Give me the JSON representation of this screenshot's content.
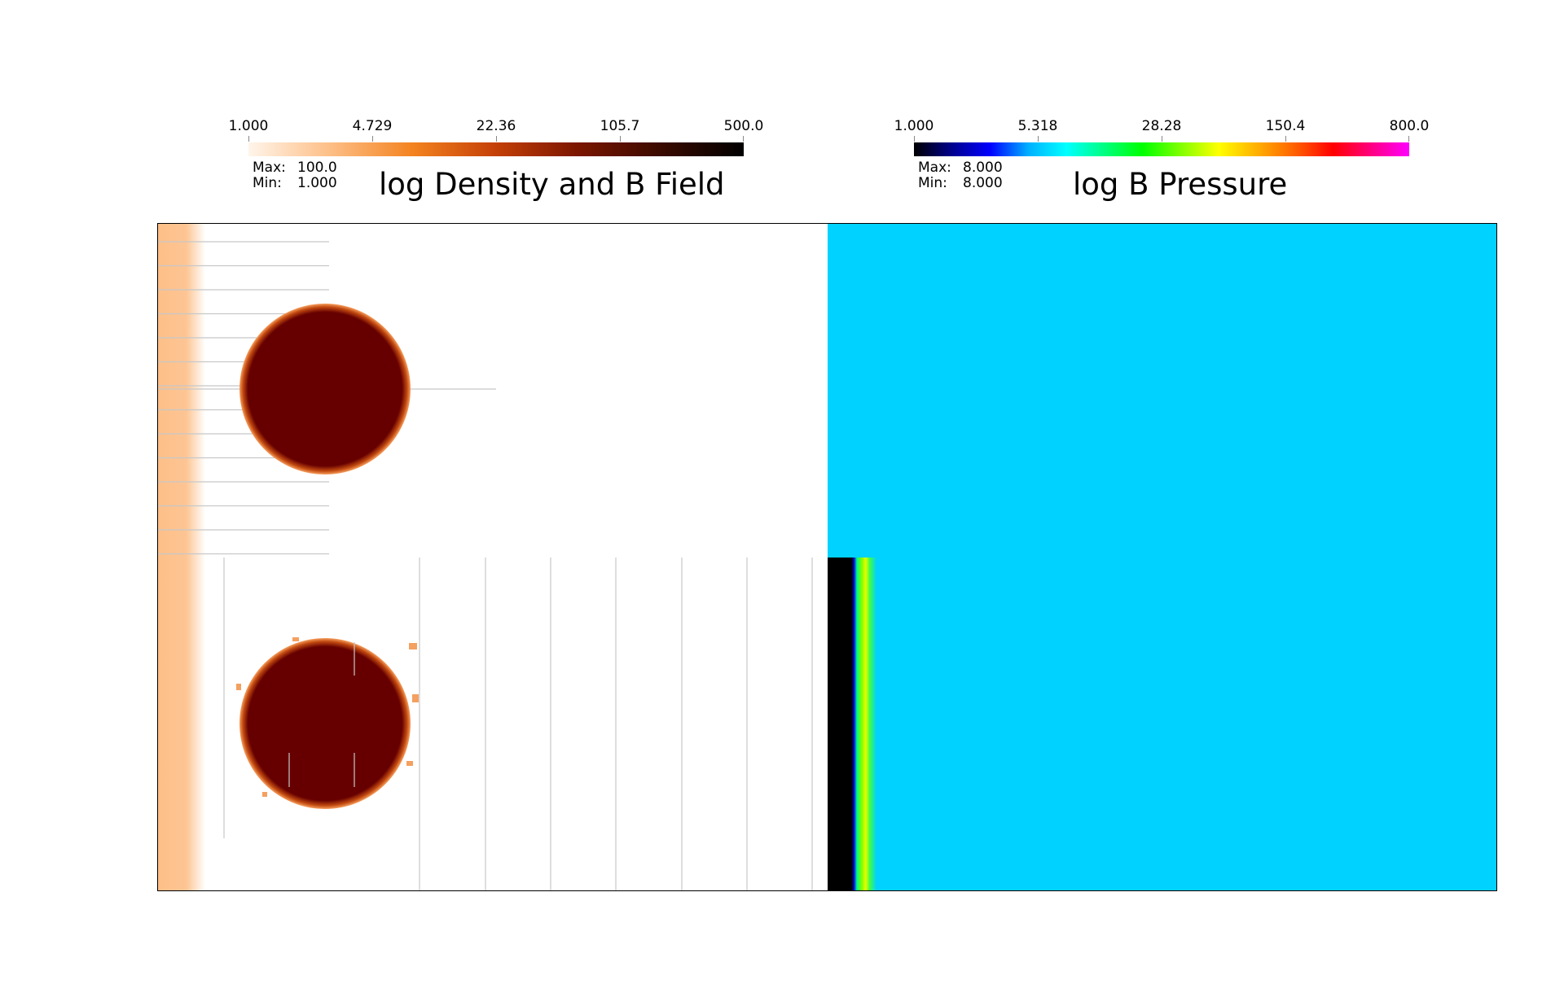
{
  "colorbars": [
    {
      "ticks": [
        "1.000",
        "4.729",
        "22.36",
        "105.7",
        "500.0"
      ],
      "max_label": "Max:",
      "max_value": "100.0",
      "min_label": "Min:",
      "min_value": "1.000",
      "title": "log Density and B Field",
      "colormap": [
        "#fff5eb",
        "#fdbe85",
        "#f3821f",
        "#c43f07",
        "#7a1500",
        "#3a0a00",
        "#000000"
      ]
    },
    {
      "ticks": [
        "1.000",
        "5.318",
        "28.28",
        "150.4",
        "800.0"
      ],
      "max_label": "Max:",
      "max_value": "8.000",
      "min_label": "Min:",
      "min_value": "8.000",
      "title": "log B Pressure",
      "colormap": [
        "#000000",
        "#00008f",
        "#0000ff",
        "#00b0ff",
        "#00ffff",
        "#00ff80",
        "#00ff00",
        "#80ff00",
        "#ffff00",
        "#ffb000",
        "#ff6000",
        "#ff0000",
        "#ff0080",
        "#ff00ff"
      ]
    }
  ],
  "chart_data": {
    "type": "heatmap",
    "log_scale": true,
    "panels": [
      {
        "title": "log Density and B Field",
        "range": [
          1.0,
          500.0
        ],
        "data_max": 100.0,
        "data_min": 1.0,
        "background_color": "#ffffff",
        "feature_color": "#660000",
        "left_band_color": "#fdc594",
        "features": [
          "dense circular cloud (upper)",
          "dense circular cloud (lower)",
          "B field lines"
        ]
      },
      {
        "title": "log B Pressure",
        "range": [
          1.0,
          800.0
        ],
        "data_max": 8.0,
        "data_min": 8.0,
        "background_color": "#00d2ff",
        "features": [
          "black strip with blue-green-yellow gradient at left edge of lower half"
        ]
      }
    ]
  }
}
